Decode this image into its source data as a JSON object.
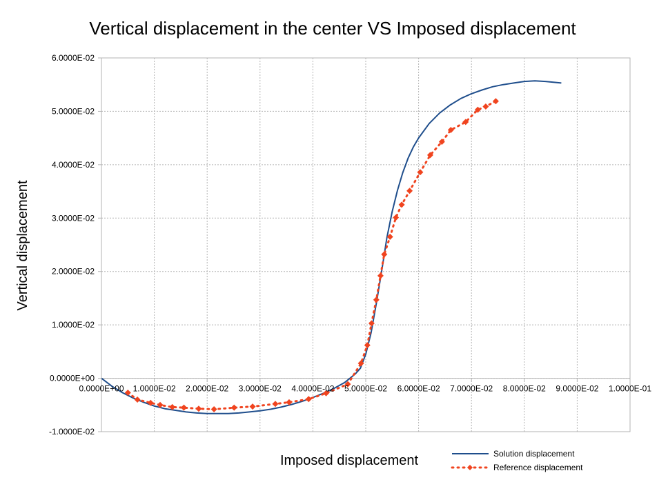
{
  "chart_data": {
    "type": "line",
    "title": "Vertical displacement in the center VS Imposed displacement",
    "xlabel": "Imposed displacement",
    "ylabel": "Vertical displacement",
    "xlim": [
      0,
      0.1
    ],
    "ylim": [
      -0.01,
      0.06
    ],
    "x_ticks": [
      "0.0000E+00",
      "1.0000E-02",
      "2.0000E-02",
      "3.0000E-02",
      "4.0000E-02",
      "5.0000E-02",
      "6.0000E-02",
      "7.0000E-02",
      "8.0000E-02",
      "9.0000E-02",
      "1.0000E-01"
    ],
    "y_ticks": [
      "-1.0000E-02",
      "0.0000E+00",
      "1.0000E-02",
      "2.0000E-02",
      "3.0000E-02",
      "4.0000E-02",
      "5.0000E-02",
      "6.0000E-02"
    ],
    "x_tick_values": [
      0,
      0.01,
      0.02,
      0.03,
      0.04,
      0.05,
      0.06,
      0.07,
      0.08,
      0.09,
      0.1
    ],
    "y_tick_values": [
      -0.01,
      0,
      0.01,
      0.02,
      0.03,
      0.04,
      0.05,
      0.06
    ],
    "grid": true,
    "legend_position": "bottom-right",
    "series": [
      {
        "name": "Solution displacement",
        "style": "solid-line",
        "color": "#1f4e8c",
        "x": [
          0,
          0.002,
          0.004,
          0.006,
          0.008,
          0.01,
          0.012,
          0.014,
          0.016,
          0.018,
          0.02,
          0.022,
          0.024,
          0.026,
          0.028,
          0.03,
          0.032,
          0.034,
          0.036,
          0.038,
          0.04,
          0.042,
          0.044,
          0.046,
          0.048,
          0.049,
          0.05,
          0.051,
          0.052,
          0.053,
          0.054,
          0.055,
          0.056,
          0.057,
          0.058,
          0.059,
          0.06,
          0.062,
          0.064,
          0.066,
          0.068,
          0.07,
          0.072,
          0.074,
          0.076,
          0.078,
          0.08,
          0.082,
          0.084,
          0.086,
          0.087
        ],
        "y": [
          0,
          -0.0015,
          -0.0027,
          -0.0037,
          -0.0045,
          -0.0052,
          -0.0057,
          -0.006,
          -0.0063,
          -0.0065,
          -0.0066,
          -0.0066,
          -0.0066,
          -0.0065,
          -0.0063,
          -0.0061,
          -0.0058,
          -0.0054,
          -0.0049,
          -0.0043,
          -0.0036,
          -0.0028,
          -0.0019,
          -0.0008,
          0.0008,
          0.0019,
          0.0045,
          0.0085,
          0.014,
          0.02,
          0.0263,
          0.0312,
          0.0352,
          0.0385,
          0.0412,
          0.0433,
          0.045,
          0.0477,
          0.0497,
          0.0512,
          0.0524,
          0.0533,
          0.054,
          0.0546,
          0.055,
          0.0553,
          0.0556,
          0.0557,
          0.0556,
          0.0554,
          0.0553
        ]
      },
      {
        "name": "Reference displacement",
        "style": "dotted-line-diamond-markers",
        "color": "#f0441f",
        "x": [
          0.005,
          0.0068,
          0.0093,
          0.0111,
          0.0134,
          0.0156,
          0.0184,
          0.0213,
          0.0251,
          0.0286,
          0.0329,
          0.0355,
          0.0392,
          0.0425,
          0.0466,
          0.0491,
          0.0503,
          0.0511,
          0.052,
          0.0528,
          0.0535,
          0.0546,
          0.0557,
          0.0568,
          0.0583,
          0.0603,
          0.0622,
          0.0644,
          0.0661,
          0.0689,
          0.0712,
          0.0727,
          0.0746
        ],
        "y": [
          -0.0027,
          -0.004,
          -0.0046,
          -0.005,
          -0.0054,
          -0.0055,
          -0.0057,
          -0.0058,
          -0.0055,
          -0.0053,
          -0.0048,
          -0.0045,
          -0.0039,
          -0.0028,
          -0.0011,
          0.0028,
          0.0062,
          0.0103,
          0.0147,
          0.0192,
          0.0232,
          0.0265,
          0.0301,
          0.0325,
          0.0351,
          0.0386,
          0.0418,
          0.0443,
          0.0465,
          0.048,
          0.0503,
          0.0509,
          0.0519
        ]
      }
    ]
  }
}
